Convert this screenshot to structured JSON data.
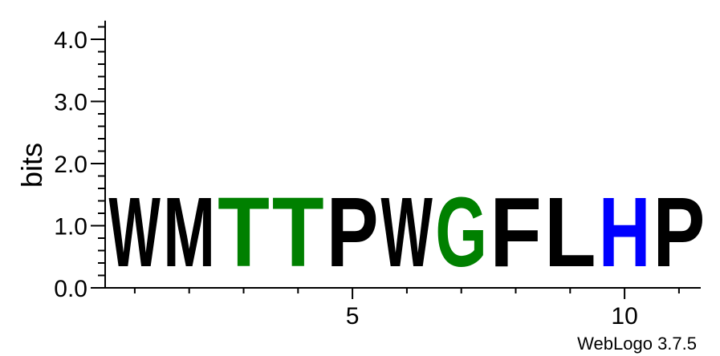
{
  "chart_data": {
    "type": "sequence-logo",
    "ylabel": "bits",
    "ylim": [
      0,
      4.3
    ],
    "yticks": [
      {
        "value": 0,
        "label": "0.0"
      },
      {
        "value": 1,
        "label": "1.0"
      },
      {
        "value": 2,
        "label": "2.0"
      },
      {
        "value": 3,
        "label": "3.0"
      },
      {
        "value": 4,
        "label": "4.0"
      }
    ],
    "xticks": [
      {
        "value": 5,
        "label": "5"
      },
      {
        "value": 10,
        "label": "10"
      }
    ],
    "positions": [
      {
        "pos": 1,
        "letter": "W",
        "bits": 1.78,
        "color": "#000000"
      },
      {
        "pos": 2,
        "letter": "M",
        "bits": 1.78,
        "color": "#000000"
      },
      {
        "pos": 3,
        "letter": "T",
        "bits": 1.78,
        "color": "#008000"
      },
      {
        "pos": 4,
        "letter": "T",
        "bits": 1.78,
        "color": "#008000"
      },
      {
        "pos": 5,
        "letter": "P",
        "bits": 1.78,
        "color": "#000000"
      },
      {
        "pos": 6,
        "letter": "W",
        "bits": 1.78,
        "color": "#000000"
      },
      {
        "pos": 7,
        "letter": "G",
        "bits": 1.78,
        "color": "#008000"
      },
      {
        "pos": 8,
        "letter": "F",
        "bits": 1.78,
        "color": "#000000"
      },
      {
        "pos": 9,
        "letter": "L",
        "bits": 1.78,
        "color": "#000000"
      },
      {
        "pos": 10,
        "letter": "H",
        "bits": 1.78,
        "color": "#0000ff"
      },
      {
        "pos": 11,
        "letter": "P",
        "bits": 1.78,
        "color": "#000000"
      }
    ]
  },
  "footer": "WebLogo 3.7.5"
}
